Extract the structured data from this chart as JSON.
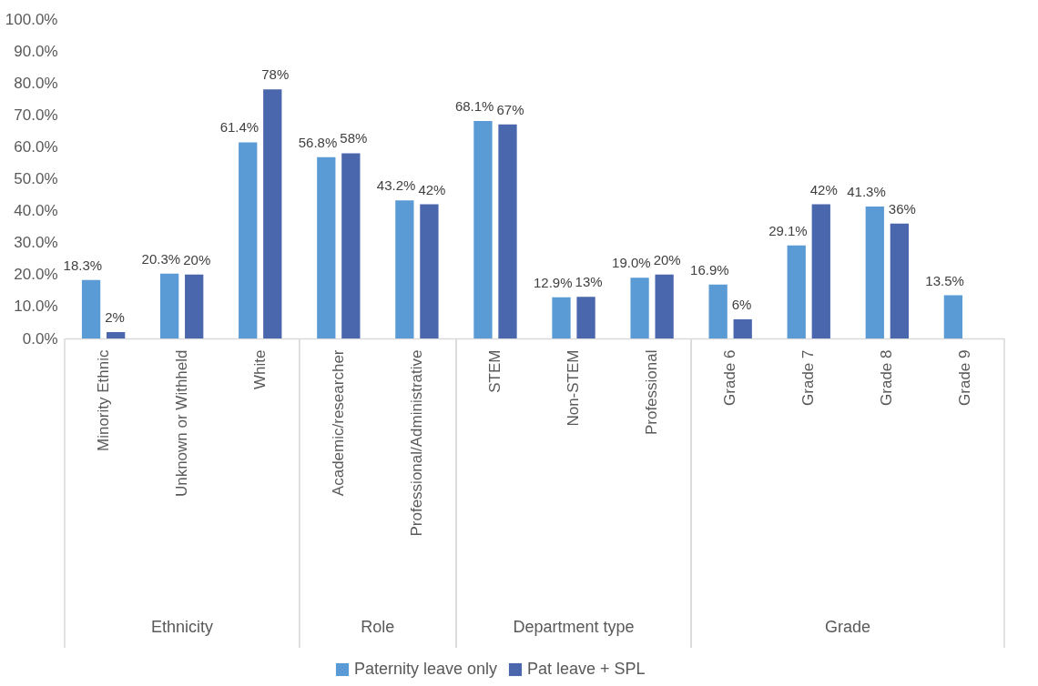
{
  "chart_data": {
    "type": "bar",
    "categories": [
      "Minority Ethnic",
      "Unknown or Withheld",
      "White",
      "Academic/researcher",
      "Professional/Administrative",
      "STEM",
      "Non-STEM",
      "Professional",
      "Grade 6",
      "Grade 7",
      "Grade 8",
      "Grade 9"
    ],
    "series": [
      {
        "name": "Paternity leave only",
        "color": "#5b9bd5",
        "values": [
          18.3,
          20.3,
          61.4,
          56.8,
          43.2,
          68.1,
          12.9,
          19.0,
          16.9,
          29.1,
          41.3,
          13.5
        ],
        "value_labels": [
          "18.3%",
          "20.3%",
          "61.4%",
          "56.8%",
          "43.2%",
          "68.1%",
          "12.9%",
          "19.0%",
          "16.9%",
          "29.1%",
          "41.3%",
          "13.5%"
        ]
      },
      {
        "name": "Pat leave + SPL",
        "color": "#4a66ac",
        "values": [
          2,
          20,
          78,
          58,
          42,
          67,
          13,
          20,
          6,
          42,
          36,
          null
        ],
        "value_labels": [
          "2%",
          "20%",
          "78%",
          "58%",
          "42%",
          "67%",
          "13%",
          "20%",
          "6%",
          "42%",
          "36%",
          null
        ]
      }
    ],
    "ylim": [
      0,
      100
    ],
    "yticks": [
      {
        "value": 0,
        "label": "0.0%"
      },
      {
        "value": 10,
        "label": "10.0%"
      },
      {
        "value": 20,
        "label": "20.0%"
      },
      {
        "value": 30,
        "label": "30.0%"
      },
      {
        "value": 40,
        "label": "40.0%"
      },
      {
        "value": 50,
        "label": "50.0%"
      },
      {
        "value": 60,
        "label": "60.0%"
      },
      {
        "value": 70,
        "label": "70.0%"
      },
      {
        "value": 80,
        "label": "80.0%"
      },
      {
        "value": 90,
        "label": "90.0%"
      },
      {
        "value": 100,
        "label": "100.0%"
      }
    ],
    "annotations": [
      "Ethnicity",
      "Role",
      "Department type",
      "Grade"
    ],
    "grid": false,
    "legend": "bottom"
  }
}
